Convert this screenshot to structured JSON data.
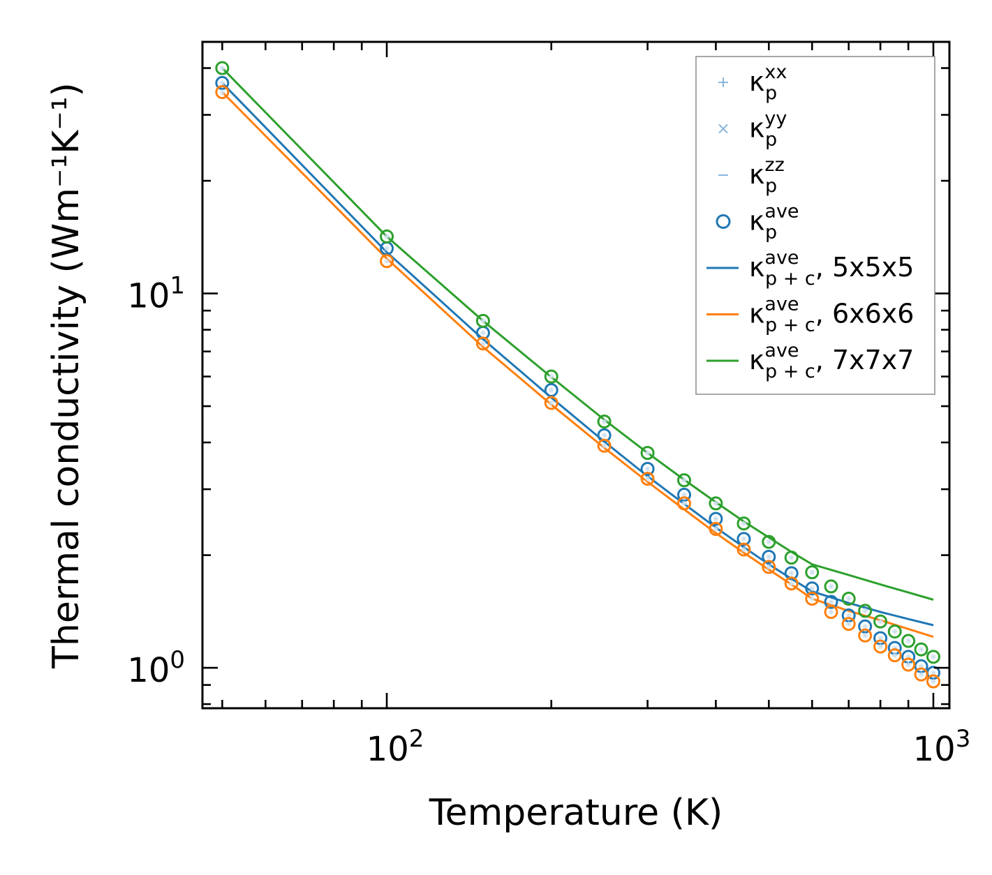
{
  "chart_data": {
    "type": "scatter",
    "x_scale": "log",
    "y_scale": "log",
    "xlabel": "Temperature (K)",
    "ylabel": "Thermal conductivity (Wm⁻¹K⁻¹)",
    "xlim": [
      46,
      1070
    ],
    "ylim": [
      0.78,
      47
    ],
    "x_ticks": [
      {
        "value": 100,
        "base": "10",
        "exp": "2"
      },
      {
        "value": 1000,
        "base": "10",
        "exp": "3"
      }
    ],
    "y_ticks": [
      {
        "value": 1,
        "base": "10",
        "exp": "0"
      },
      {
        "value": 10,
        "base": "10",
        "exp": "1"
      }
    ],
    "legend_position": "top-right",
    "legend": [
      {
        "kind": "plus",
        "color": "#8ab6da",
        "base": "κ",
        "sup": "xx",
        "sub": "p",
        "suffix": ""
      },
      {
        "kind": "cross",
        "color": "#8ab6da",
        "base": "κ",
        "sup": "yy",
        "sub": "p",
        "suffix": ""
      },
      {
        "kind": "dash",
        "color": "#8ab6da",
        "base": "κ",
        "sup": "zz",
        "sub": "p",
        "suffix": ""
      },
      {
        "kind": "circle",
        "color": "#1f77b4",
        "base": "κ",
        "sup": "ave",
        "sub": "p",
        "suffix": ""
      },
      {
        "kind": "line",
        "color": "#1f77b4",
        "base": "κ",
        "sup": "ave",
        "sub": "p + c",
        "suffix": ", 5x5x5"
      },
      {
        "kind": "line",
        "color": "#ff7f0e",
        "base": "κ",
        "sup": "ave",
        "sub": "p + c",
        "suffix": ", 6x6x6"
      },
      {
        "kind": "line",
        "color": "#2ca02c",
        "base": "κ",
        "sup": "ave",
        "sub": "p + c",
        "suffix": ", 7x7x7"
      }
    ],
    "x": [
      50,
      100,
      150,
      200,
      250,
      300,
      350,
      400,
      450,
      500,
      550,
      600,
      650,
      700,
      750,
      800,
      850,
      900,
      950,
      1000
    ],
    "series": [
      {
        "name": "5x5x5",
        "color": "#1f77b4",
        "points": [
          36.5,
          13.2,
          7.85,
          5.52,
          4.18,
          3.4,
          2.9,
          2.5,
          2.21,
          1.98,
          1.79,
          1.63,
          1.5,
          1.38,
          1.29,
          1.2,
          1.13,
          1.07,
          1.01,
          0.97
        ],
        "line": [
          36.5,
          12.9,
          7.55,
          5.27,
          4.02,
          3.25,
          2.74,
          2.37,
          2.1,
          1.89,
          1.73,
          1.6,
          1.49,
          1.41,
          1.35,
          1.3
        ]
      },
      {
        "name": "6x6x6",
        "color": "#ff7f0e",
        "points": [
          34.5,
          12.2,
          7.35,
          5.1,
          3.92,
          3.2,
          2.75,
          2.35,
          2.07,
          1.86,
          1.68,
          1.53,
          1.41,
          1.31,
          1.22,
          1.14,
          1.08,
          1.02,
          0.96,
          0.92
        ],
        "line": [
          34.5,
          12.4,
          7.2,
          5.05,
          3.87,
          3.14,
          2.65,
          2.29,
          2.03,
          1.83,
          1.67,
          1.53,
          1.42,
          1.34,
          1.27,
          1.21
        ]
      },
      {
        "name": "7x7x7",
        "color": "#2ca02c",
        "points": [
          40,
          14.2,
          8.45,
          6.0,
          4.55,
          3.75,
          3.17,
          2.75,
          2.43,
          2.17,
          1.97,
          1.8,
          1.65,
          1.53,
          1.42,
          1.33,
          1.25,
          1.18,
          1.12,
          1.07
        ],
        "line": [
          40,
          14.2,
          8.45,
          5.98,
          4.6,
          3.75,
          3.18,
          2.77,
          2.46,
          2.23,
          2.04,
          1.89,
          1.77,
          1.67,
          1.59,
          1.52
        ]
      }
    ],
    "line_x": [
      50,
      100,
      150,
      200,
      250,
      300,
      350,
      400,
      450,
      500,
      550,
      600,
      700,
      800,
      900,
      1000
    ]
  }
}
